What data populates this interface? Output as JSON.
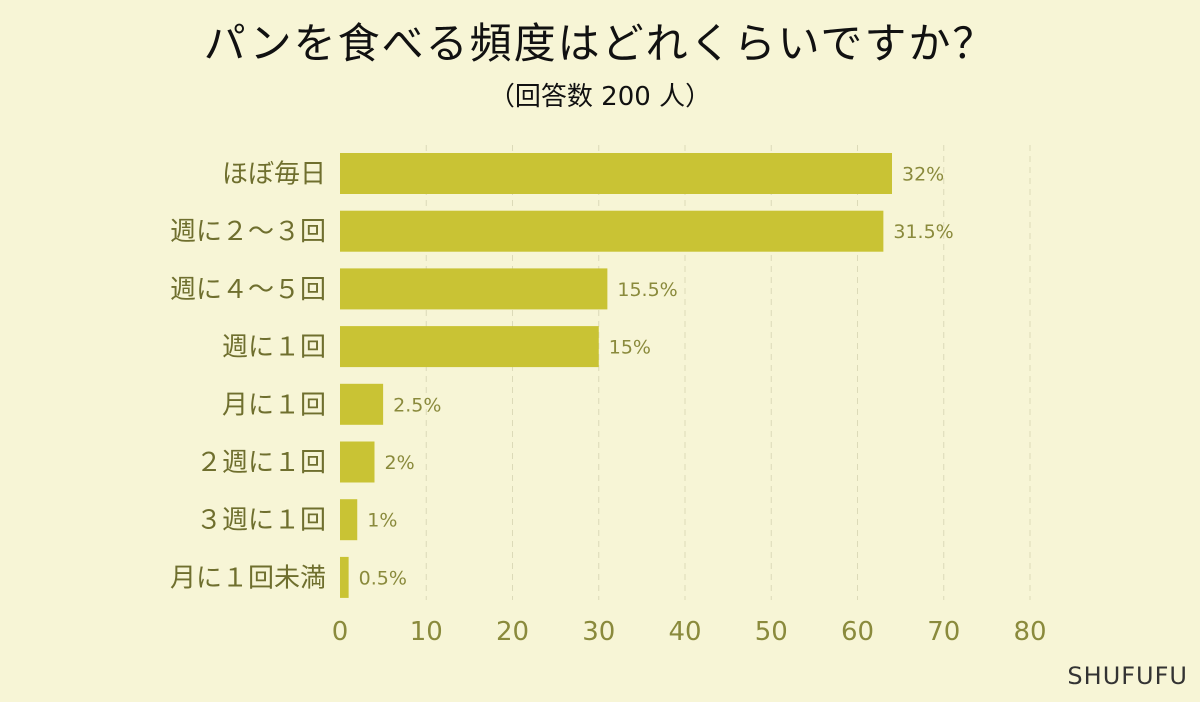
{
  "chart_data": {
    "type": "bar",
    "orientation": "horizontal",
    "title": "パンを食べる頻度はどれくらいですか？",
    "subtitle": "（回答数 200 人）",
    "categories": [
      "ほぼ毎日",
      "週に２～３回",
      "週に４～５回",
      "週に１回",
      "月に１回",
      "２週に１回",
      "３週に１回",
      "月に１回未満"
    ],
    "values": [
      64,
      63,
      31,
      30,
      5,
      4,
      2,
      1
    ],
    "value_labels": [
      "32%",
      "31.5%",
      "15.5%",
      "15%",
      "2.5%",
      "2%",
      "1%",
      "0.5%"
    ],
    "xlim": [
      0,
      80
    ],
    "xticks": [
      0,
      10,
      20,
      30,
      40,
      50,
      60,
      70,
      80
    ],
    "grid": "vertical dashed",
    "bar_color": "#c9c334",
    "label_color": "#8a8a3c"
  },
  "brand": "SHUFUFU"
}
